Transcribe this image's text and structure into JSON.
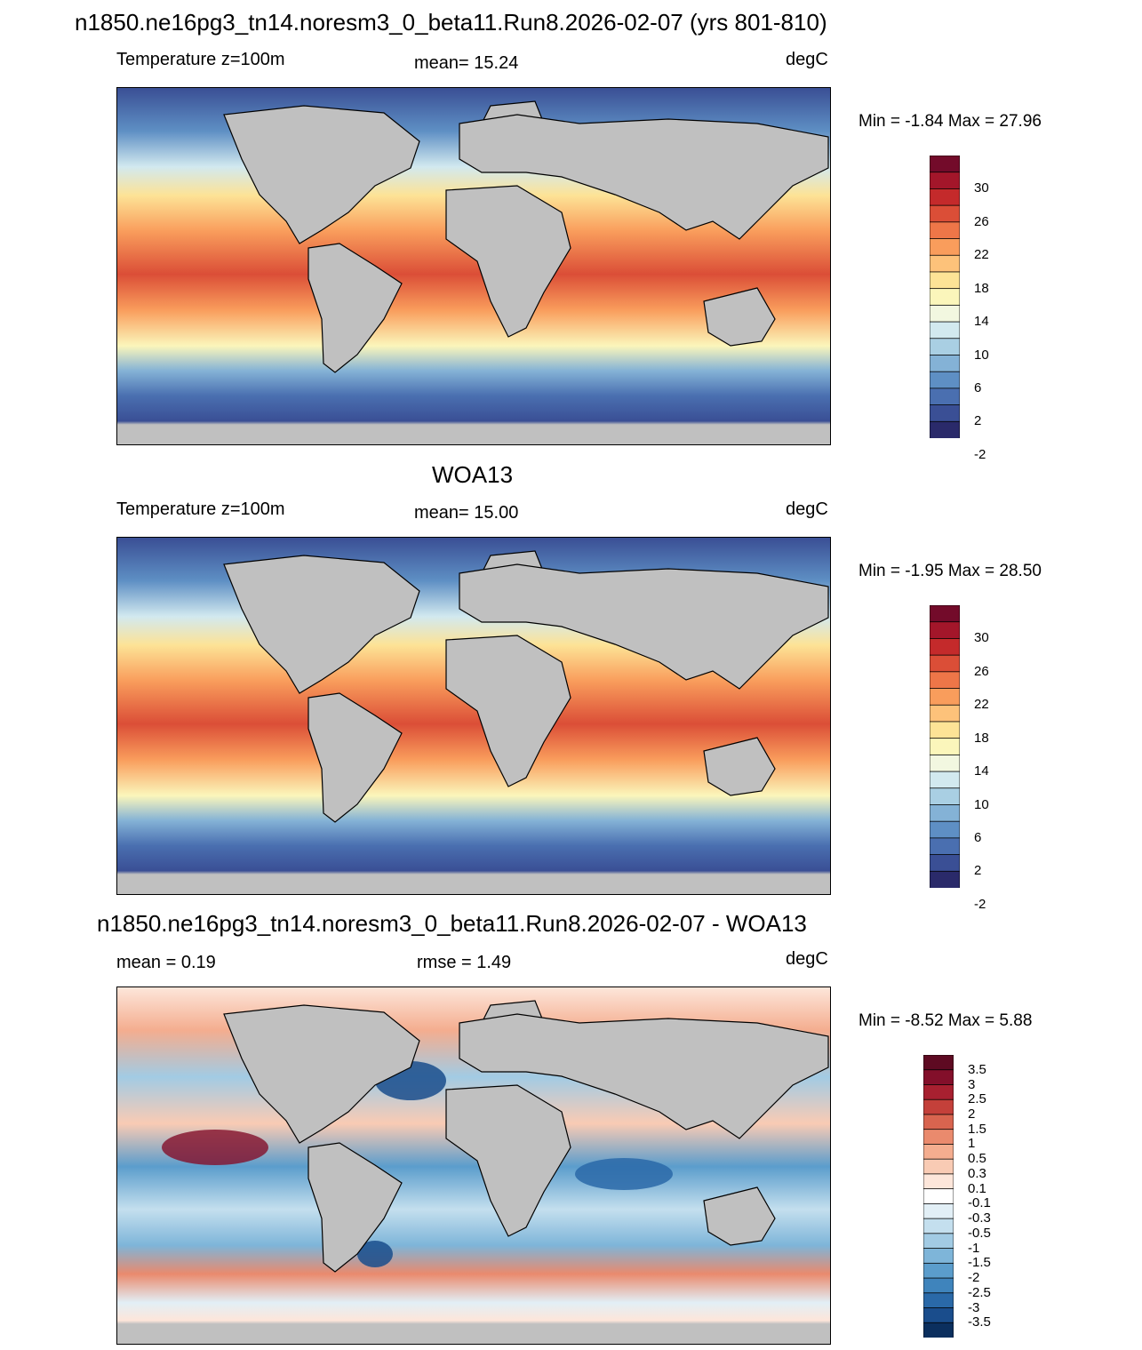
{
  "main_title": "n1850.ne16pg3_tn14.noresm3_0_beta11.Run8.2026-02-07 (yrs 801-810)",
  "panels": [
    {
      "title": "",
      "left_label": "Temperature z=100m",
      "center_label": "mean=  15.24",
      "units": "degC",
      "minmax": "Min =  -1.84 Max =  27.96",
      "colorbar": {
        "colors": [
          "#2a2a6a",
          "#3a4f95",
          "#4a6fb0",
          "#5e8fc4",
          "#84b2d6",
          "#a9cfe3",
          "#d2e9ef",
          "#f2f7e0",
          "#fbf6bb",
          "#fde396",
          "#fdc27a",
          "#f99d5c",
          "#ee7648",
          "#db4e37",
          "#c42a2b",
          "#a3162a",
          "#730b2a"
        ],
        "labels": [
          "30",
          "26",
          "22",
          "18",
          "14",
          "10",
          "6",
          "2",
          "-2"
        ]
      }
    },
    {
      "title": "WOA13",
      "left_label": "Temperature z=100m",
      "center_label": "mean=  15.00",
      "units": "degC",
      "minmax": "Min =  -1.95 Max =  28.50",
      "colorbar": {
        "colors": [
          "#2a2a6a",
          "#3a4f95",
          "#4a6fb0",
          "#5e8fc4",
          "#84b2d6",
          "#a9cfe3",
          "#d2e9ef",
          "#f2f7e0",
          "#fbf6bb",
          "#fde396",
          "#fdc27a",
          "#f99d5c",
          "#ee7648",
          "#db4e37",
          "#c42a2b",
          "#a3162a",
          "#730b2a"
        ],
        "labels": [
          "30",
          "26",
          "22",
          "18",
          "14",
          "10",
          "6",
          "2",
          "-2"
        ]
      }
    },
    {
      "title": "n1850.ne16pg3_tn14.noresm3_0_beta11.Run8.2026-02-07 - WOA13",
      "left_label": "mean =   0.19",
      "center_label": "rmse =   1.49",
      "units": "degC",
      "minmax": "Min =  -8.52 Max =   5.88",
      "colorbar": {
        "colors": [
          "#0b2f5e",
          "#1a4d8c",
          "#2a69a8",
          "#3f84bc",
          "#5b9dcc",
          "#7eb5d9",
          "#a2cbe4",
          "#c4dfee",
          "#e2eff6",
          "#ffffff",
          "#fde6da",
          "#f9cbb4",
          "#f4ad8f",
          "#ea8a6d",
          "#d8644f",
          "#c4403a",
          "#a82030",
          "#830f2a",
          "#5e0a22"
        ],
        "labels": [
          "3.5",
          "3",
          "2.5",
          "2",
          "1.5",
          "1",
          "0.5",
          "0.3",
          "0.1",
          "-0.1",
          "-0.3",
          "-0.5",
          "-1",
          "-1.5",
          "-2",
          "-2.5",
          "-3",
          "-3.5"
        ]
      }
    }
  ]
}
